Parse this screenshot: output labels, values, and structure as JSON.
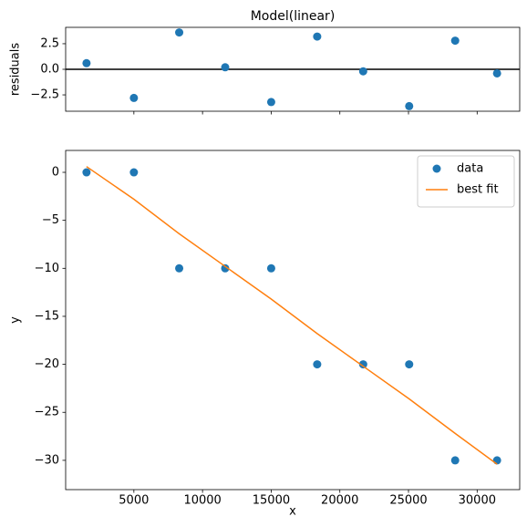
{
  "chart_data": [
    {
      "type": "scatter",
      "title": "Model(linear)",
      "ylabel": "residuals",
      "x": [
        1550,
        5000,
        8300,
        11650,
        15000,
        18350,
        21700,
        25050,
        28400,
        31450
      ],
      "values": [
        0.6,
        -2.8,
        3.6,
        0.2,
        -3.2,
        3.2,
        -0.2,
        -3.6,
        2.8,
        -0.4
      ],
      "color": "#1f77b4",
      "hlines": [
        0
      ],
      "xlim": [
        30,
        33100
      ],
      "xticks": [
        5000,
        10000,
        15000,
        20000,
        25000,
        30000
      ],
      "ylim": [
        -4.1,
        4.1
      ],
      "yticks": [
        {
          "value": -2.5,
          "label": "−2.5"
        },
        {
          "value": 0,
          "label": "0.0"
        },
        {
          "value": 2.5,
          "label": "2.5"
        }
      ]
    },
    {
      "type": "scatter",
      "xlabel": "x",
      "ylabel": "y",
      "legend": "upper right",
      "x": [
        1550,
        5000,
        8300,
        11650,
        15000,
        18350,
        21700,
        25050,
        28400,
        31450
      ],
      "series": [
        {
          "name": "data",
          "type": "scatter",
          "color": "#1f77b4",
          "values": [
            0,
            0,
            -10,
            -10,
            -10,
            -20,
            -20,
            -20,
            -30,
            -30
          ]
        },
        {
          "name": "best fit",
          "type": "line",
          "color": "#ff7f0e",
          "values": [
            0.6,
            -2.8,
            -6.4,
            -9.8,
            -13.2,
            -16.8,
            -20.2,
            -23.6,
            -27.2,
            -30.4
          ]
        }
      ],
      "xlim": [
        30,
        33100
      ],
      "xticks": [
        5000,
        10000,
        15000,
        20000,
        25000,
        30000
      ],
      "ylim": [
        -33.05,
        2.28
      ],
      "yticks": [
        {
          "value": -30,
          "label": "−30"
        },
        {
          "value": -25,
          "label": "−25"
        },
        {
          "value": -20,
          "label": "−20"
        },
        {
          "value": -15,
          "label": "−15"
        },
        {
          "value": -10,
          "label": "−10"
        },
        {
          "value": -5,
          "label": "−5"
        },
        0
      ]
    }
  ]
}
